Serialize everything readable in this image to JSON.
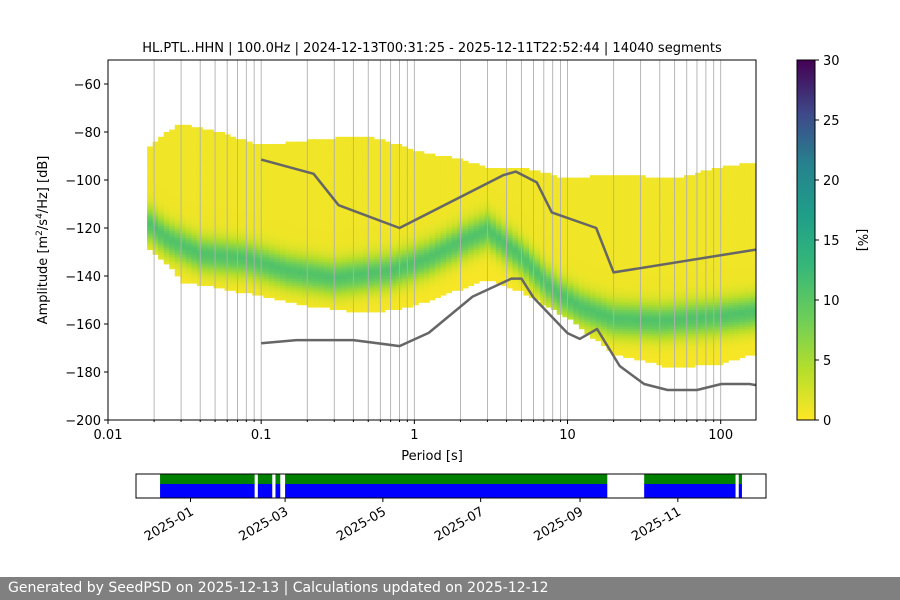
{
  "chart_data": [
    {
      "type": "heatmap",
      "title": "HL.PTL..HHN | 100.0Hz | 2024-12-13T00:31:25 - 2025-12-11T22:52:44 | 14040 segments",
      "xlabel": "Period [s]",
      "ylabel_parts": [
        "Amplitude [m",
        "2",
        "/s",
        "4",
        "/Hz] [dB]"
      ],
      "x_scale": "log",
      "xlim": [
        0.01,
        170
      ],
      "ylim": [
        -200,
        -50
      ],
      "x_ticks": [
        0.01,
        0.1,
        1,
        10,
        100
      ],
      "x_tick_labels": [
        "0.01",
        "0.1",
        "1",
        "10",
        "100"
      ],
      "y_ticks": [
        -200,
        -180,
        -160,
        -140,
        -120,
        -100,
        -80,
        -60
      ],
      "y_tick_labels": [
        "−200",
        "−180",
        "−160",
        "−140",
        "−120",
        "−100",
        "−80",
        "−60"
      ],
      "grid": "vertical",
      "colorbar": {
        "label": "[%]",
        "range": [
          0,
          30
        ],
        "ticks": [
          0,
          5,
          10,
          15,
          20,
          25,
          30
        ],
        "tick_labels": [
          "0",
          "5",
          "10",
          "15",
          "20",
          "25",
          "30"
        ],
        "colormap": "viridis_r"
      },
      "density_region": {
        "period": [
          0.018,
          0.025,
          0.03,
          0.05,
          0.1,
          0.2,
          0.5,
          1,
          2,
          3,
          5,
          10,
          20,
          50,
          100,
          170
        ],
        "lower_db": [
          -127,
          -135,
          -142,
          -144,
          -148,
          -152,
          -155,
          -152,
          -145,
          -141,
          -146,
          -157,
          -172,
          -178,
          -176,
          -172
        ],
        "upper_db": [
          -88,
          -80,
          -77,
          -80,
          -86,
          -84,
          -82,
          -88,
          -92,
          -95,
          -95,
          -100,
          -98,
          -100,
          -95,
          -93
        ]
      },
      "mode_curve": {
        "period": [
          0.018,
          0.025,
          0.04,
          0.08,
          0.15,
          0.3,
          0.7,
          1.2,
          2,
          3,
          5,
          8,
          12,
          20,
          40,
          100,
          170
        ],
        "db": [
          -118,
          -125,
          -131,
          -133,
          -138,
          -141,
          -138,
          -133,
          -126,
          -121,
          -132,
          -146,
          -153,
          -158,
          -159,
          -157,
          -155
        ]
      },
      "nhnm": {
        "period": [
          0.1,
          0.22,
          0.32,
          0.8,
          3.8,
          4.6,
          6.3,
          7.9,
          15.4,
          20,
          170
        ],
        "db": [
          -91.5,
          -97.4,
          -110.5,
          -120,
          -98,
          -96.5,
          -101,
          -113.5,
          -120,
          -138.5,
          -129
        ]
      },
      "nlnm": {
        "period": [
          0.1,
          0.17,
          0.4,
          0.8,
          1.24,
          2.4,
          4.3,
          5,
          6,
          10,
          12,
          15.6,
          21.9,
          31.6,
          45,
          70,
          101,
          154,
          170
        ],
        "db": [
          -168,
          -166.7,
          -166.7,
          -169.2,
          -163.7,
          -148.6,
          -141.1,
          -141.1,
          -149,
          -163.8,
          -166.2,
          -162.1,
          -177.5,
          -185,
          -187.5,
          -187.5,
          -185,
          -185,
          -185.5
        ]
      }
    },
    {
      "type": "timeline",
      "x_tick_labels": [
        "2025-01",
        "2025-03",
        "2025-05",
        "2025-07",
        "2025-09",
        "2025-11"
      ],
      "x_tick_dates": [
        "2025-01-01",
        "2025-03-01",
        "2025-05-01",
        "2025-07-01",
        "2025-09-01",
        "2025-11-01"
      ],
      "xlim": [
        "2024-11-28",
        "2025-12-26"
      ],
      "data_span": [
        "2024-12-13",
        "2025-12-11"
      ],
      "gaps": [
        [
          "2025-09-18",
          "2025-10-11"
        ],
        [
          "2025-02-10",
          "2025-02-12"
        ],
        [
          "2025-02-21",
          "2025-02-23"
        ],
        [
          "2025-02-26",
          "2025-03-01"
        ],
        [
          "2025-12-07",
          "2025-12-09"
        ]
      ],
      "colors": {
        "upper": "#008000",
        "lower": "#0000ff"
      }
    }
  ],
  "footer": "Generated by SeedPSD on 2025-12-13 | Calculations updated on 2025-12-12"
}
